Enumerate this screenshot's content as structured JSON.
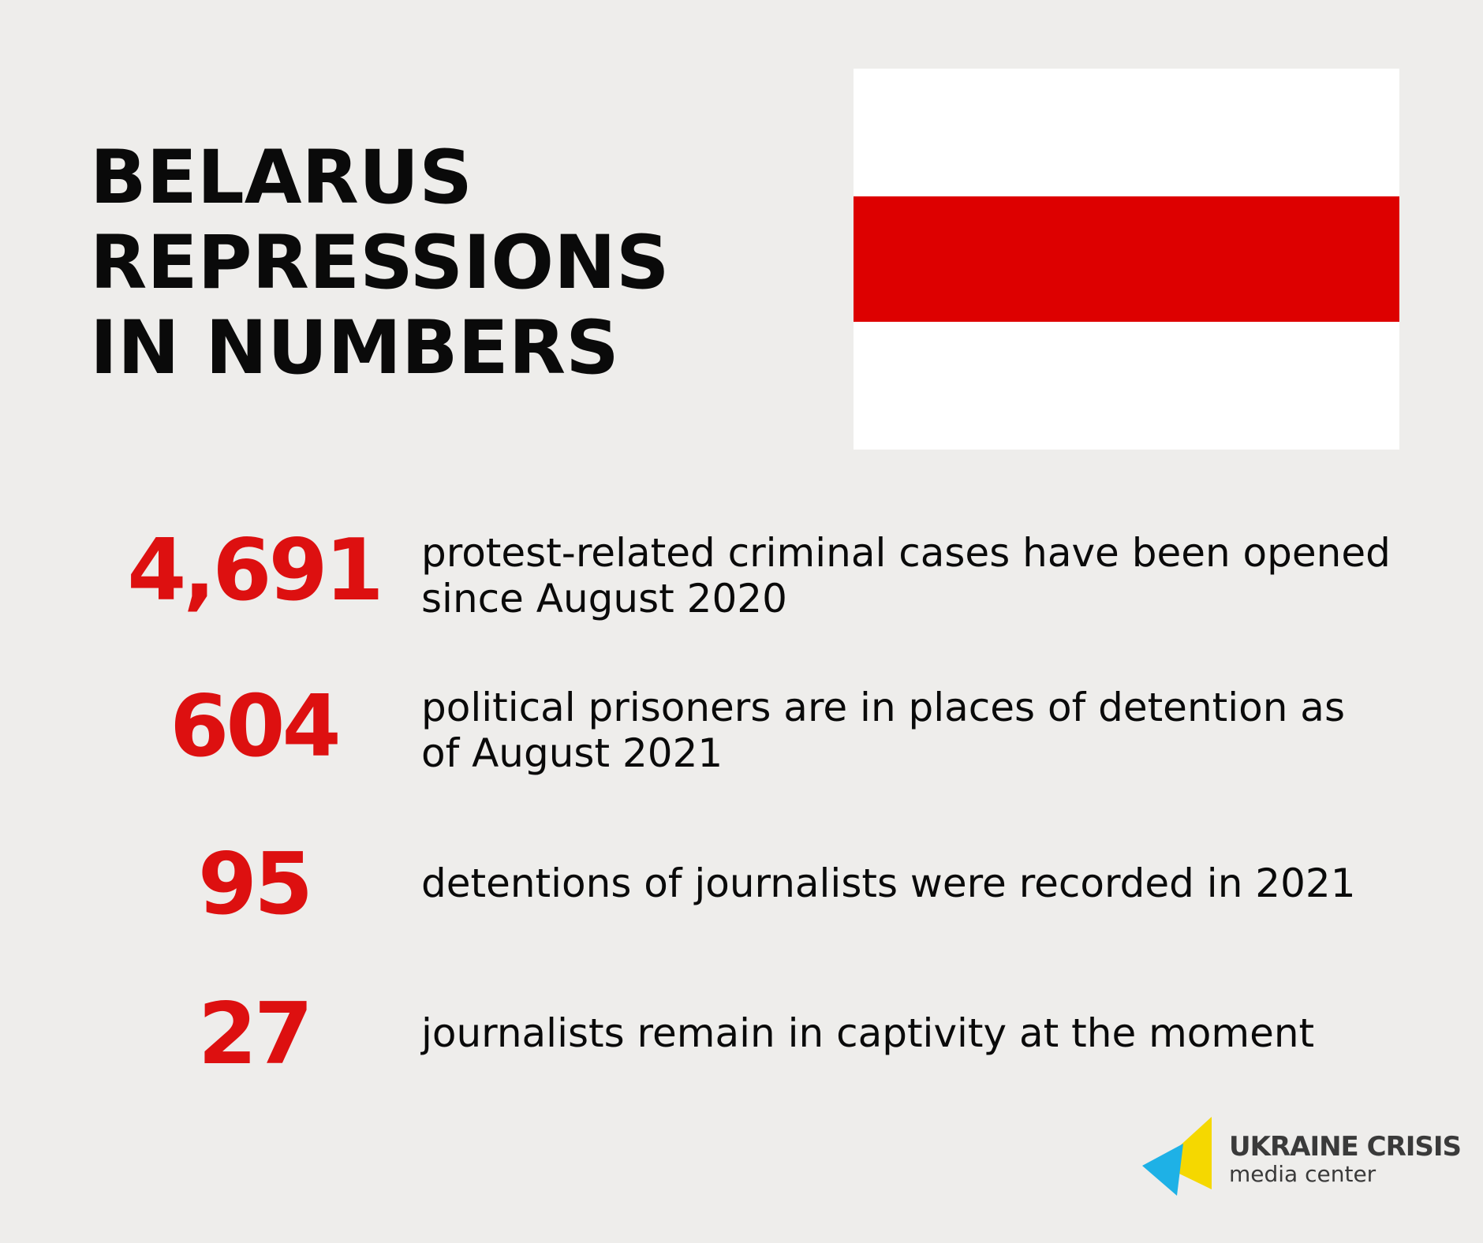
{
  "title": {
    "line1": "BELARUS",
    "line2": "REPRESSIONS",
    "line3": "IN NUMBERS"
  },
  "flag": {
    "colors": {
      "top": "#ffffff",
      "middle": "#dd0000",
      "bottom": "#ffffff"
    }
  },
  "accent_color": "#dd1010",
  "stats": [
    {
      "number": "4,691",
      "description": "protest-related criminal cases have been opened since August 2020"
    },
    {
      "number": "604",
      "description": "political prisoners are in places of detention as of August 2021"
    },
    {
      "number": "95",
      "description": "detentions of journalists were recorded in 2021"
    },
    {
      "number": "27",
      "description": "journalists remain in captivity at the moment"
    }
  ],
  "logo": {
    "name": "UKRAINE CRISIS",
    "subtitle": "media center",
    "colors": {
      "yellow": "#f5d800",
      "blue": "#1eb1e6"
    }
  }
}
